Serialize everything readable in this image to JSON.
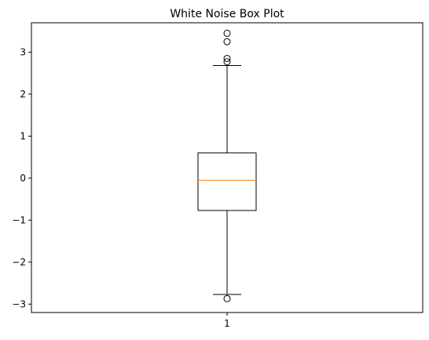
{
  "chart_data": {
    "type": "box",
    "title": "White Noise Box Plot",
    "xlabel": "",
    "ylabel": "",
    "categories": [
      "1"
    ],
    "ylim": [
      -3.2,
      3.7
    ],
    "yticks": [
      -3,
      -2,
      -1,
      0,
      1,
      2,
      3
    ],
    "ytick_labels": [
      "−3",
      "−2",
      "−1",
      "0",
      "1",
      "2",
      "3"
    ],
    "grid": false,
    "boxes": [
      {
        "category": "1",
        "whisker_low": -2.77,
        "q1": -0.77,
        "median": -0.05,
        "q3": 0.6,
        "whisker_high": 2.68,
        "outliers": [
          3.45,
          3.25,
          2.85,
          2.77,
          -2.87
        ]
      }
    ],
    "colors": {
      "box": "#000000",
      "median": "#ff7f0e",
      "background": "#ffffff"
    }
  }
}
